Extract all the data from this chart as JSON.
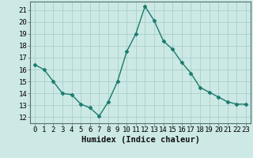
{
  "x": [
    0,
    1,
    2,
    3,
    4,
    5,
    6,
    7,
    8,
    9,
    10,
    11,
    12,
    13,
    14,
    15,
    16,
    17,
    18,
    19,
    20,
    21,
    22,
    23
  ],
  "y": [
    16.4,
    16.0,
    15.0,
    14.0,
    13.9,
    13.1,
    12.8,
    12.1,
    13.3,
    15.0,
    17.5,
    19.0,
    21.3,
    20.1,
    18.4,
    17.7,
    16.6,
    15.7,
    14.5,
    14.1,
    13.7,
    13.3,
    13.1,
    13.1
  ],
  "line_color": "#1a7a6e",
  "marker": "D",
  "marker_size": 2.5,
  "bg_color": "#cce9e5",
  "grid_color": "#aacfcb",
  "xlabel": "Humidex (Indice chaleur)",
  "xlabel_fontsize": 7.5,
  "xlim": [
    -0.5,
    23.5
  ],
  "ylim": [
    11.5,
    21.7
  ],
  "yticks": [
    12,
    13,
    14,
    15,
    16,
    17,
    18,
    19,
    20,
    21
  ],
  "xticks": [
    0,
    1,
    2,
    3,
    4,
    5,
    6,
    7,
    8,
    9,
    10,
    11,
    12,
    13,
    14,
    15,
    16,
    17,
    18,
    19,
    20,
    21,
    22,
    23
  ],
  "tick_fontsize": 6.5,
  "line_width": 1.0
}
